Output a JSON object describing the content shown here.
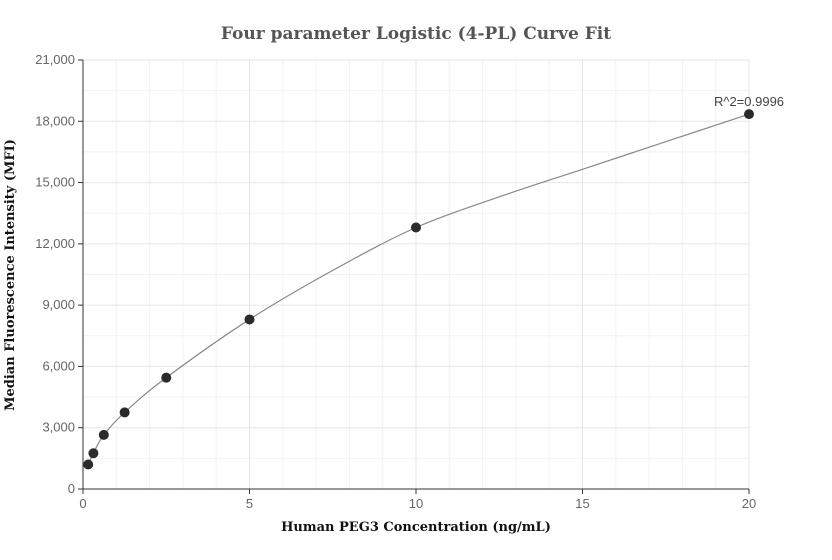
{
  "chart_data": {
    "type": "scatter",
    "title": "Four parameter Logistic (4-PL) Curve Fit",
    "xlabel": "Human PEG3 Concentration (ng/mL)",
    "ylabel": "Median Fluorescence Intensity (MFI)",
    "xlim": [
      0,
      20
    ],
    "ylim": [
      0,
      21000
    ],
    "x_ticks": [
      0,
      5,
      10,
      15,
      20
    ],
    "x_tick_labels": [
      "0",
      "5",
      "10",
      "15",
      "20"
    ],
    "y_ticks": [
      0,
      3000,
      6000,
      9000,
      12000,
      15000,
      18000,
      21000
    ],
    "y_tick_labels": [
      "0",
      "3,000",
      "6,000",
      "9,000",
      "12,000",
      "15,000",
      "18,000",
      "21,000"
    ],
    "grid": true,
    "series": [
      {
        "points": [
          {
            "x": 0.156,
            "y": 1200
          },
          {
            "x": 0.3125,
            "y": 1750
          },
          {
            "x": 0.625,
            "y": 2650
          },
          {
            "x": 1.25,
            "y": 3750
          },
          {
            "x": 2.5,
            "y": 5450
          },
          {
            "x": 5,
            "y": 8300
          },
          {
            "x": 10,
            "y": 12800
          },
          {
            "x": 20,
            "y": 18350
          }
        ]
      }
    ],
    "fit_curve": [
      {
        "x": 0.156,
        "y": 1200
      },
      {
        "x": 0.3125,
        "y": 1750
      },
      {
        "x": 0.625,
        "y": 2650
      },
      {
        "x": 1.25,
        "y": 3750
      },
      {
        "x": 2.5,
        "y": 5450
      },
      {
        "x": 5,
        "y": 8300
      },
      {
        "x": 7.5,
        "y": 10700
      },
      {
        "x": 10,
        "y": 12800
      },
      {
        "x": 12.5,
        "y": 14300
      },
      {
        "x": 15,
        "y": 15650
      },
      {
        "x": 17.5,
        "y": 17000
      },
      {
        "x": 20,
        "y": 18350
      }
    ],
    "annotation": "R^2=0.9996",
    "colors": {
      "points": "#2b2b2b",
      "curve": "#888888",
      "grid": "#e6e6e6"
    }
  }
}
